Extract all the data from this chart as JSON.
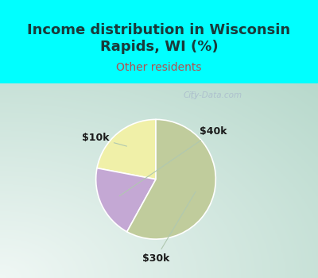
{
  "title": "Income distribution in Wisconsin\nRapids, WI (%)",
  "subtitle": "Other residents",
  "title_color": "#1a3a3a",
  "subtitle_color": "#b05050",
  "title_bg_color": "#00FFFF",
  "chart_bg_left": "#b8d8c8",
  "chart_bg_right": "#f0f8f4",
  "slices": [
    {
      "label": "$10k",
      "value": 22,
      "color": "#f0f0a8"
    },
    {
      "label": "$40k",
      "value": 20,
      "color": "#c4a8d4"
    },
    {
      "label": "$30k",
      "value": 58,
      "color": "#c0cc9c"
    }
  ],
  "label_color": "#1a1a1a",
  "watermark": "City-Data.com",
  "watermark_color": "#aabccc",
  "startangle": 90,
  "figsize": [
    4.0,
    3.5
  ],
  "dpi": 100,
  "title_fontsize": 13,
  "subtitle_fontsize": 10,
  "label_fontsize": 9,
  "border_color": "#00FFFF",
  "border_width": 6
}
